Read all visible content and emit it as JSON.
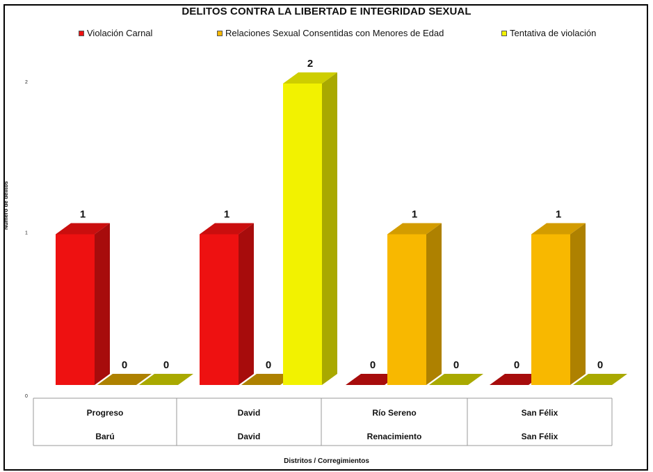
{
  "chart_data": {
    "type": "bar",
    "title": "DELITOS CONTRA LA LIBERTAD E INTEGRIDAD SEXUAL",
    "xlabel": "Distritos / Corregimientos",
    "ylabel": "Número de delitos",
    "ylim": [
      0,
      2
    ],
    "yticks": [
      "0",
      "1",
      "2"
    ],
    "categories": [
      {
        "corregimiento": "Progreso",
        "distrito": "Barú"
      },
      {
        "corregimiento": "David",
        "distrito": "David"
      },
      {
        "corregimiento": "Río Sereno",
        "distrito": "Renacimiento"
      },
      {
        "corregimiento": "San Félix",
        "distrito": "San Félix"
      }
    ],
    "series": [
      {
        "name": "Violación Carnal",
        "color": "#ee1111",
        "values": [
          1,
          1,
          0,
          0
        ]
      },
      {
        "name": "Relaciones Sexual Consentidas con Menores de Edad",
        "color": "#f8b800",
        "values": [
          0,
          0,
          1,
          1
        ]
      },
      {
        "name": "Tentativa de violación",
        "color": "#f2f200",
        "values": [
          0,
          2,
          0,
          0
        ]
      }
    ],
    "legend_position": "top",
    "grid": false,
    "bar_style": "3d"
  }
}
